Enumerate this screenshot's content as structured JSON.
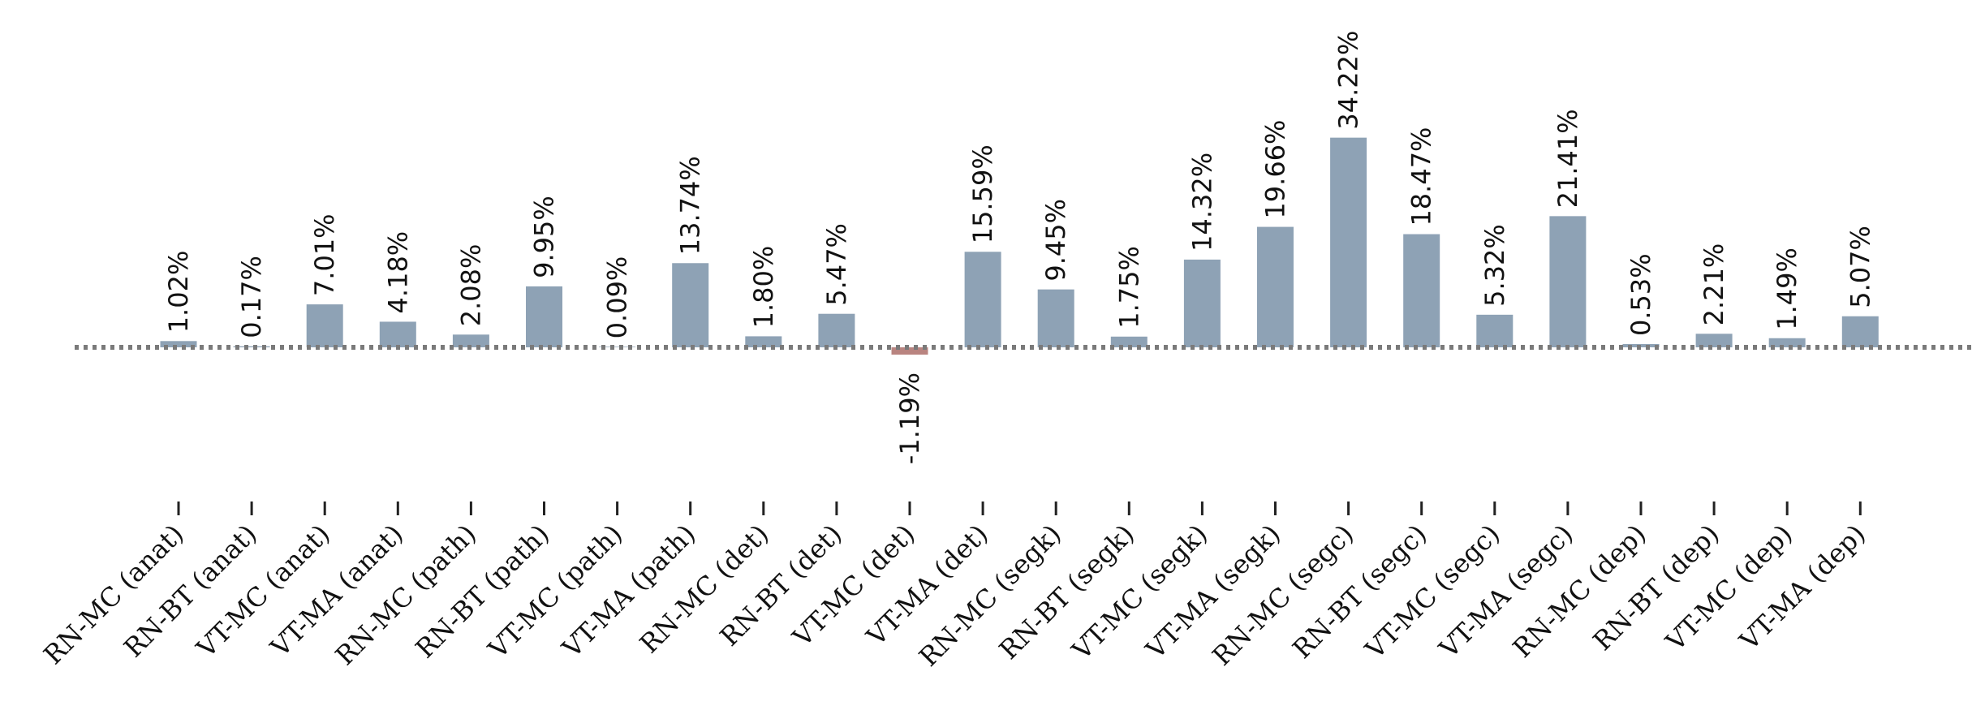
{
  "chart_data": {
    "type": "bar",
    "categories": [
      "RN-MC (anat)",
      "RN-BT (anat)",
      "VT-MC (anat)",
      "VT-MA (anat)",
      "RN-MC (path)",
      "RN-BT (path)",
      "VT-MC (path)",
      "VT-MA (path)",
      "RN-MC (det)",
      "RN-BT (det)",
      "VT-MC (det)",
      "VT-MA (det)",
      "RN-MC (segk)",
      "RN-BT (segk)",
      "VT-MC (segk)",
      "VT-MA (segk)",
      "RN-MC (segc)",
      "RN-BT (segc)",
      "VT-MC (segc)",
      "VT-MA (segc)",
      "RN-MC (dep)",
      "RN-BT (dep)",
      "VT-MC (dep)",
      "VT-MA (dep)"
    ],
    "values": [
      1.02,
      0.17,
      7.01,
      4.18,
      2.08,
      9.95,
      0.09,
      13.74,
      1.8,
      5.47,
      -1.19,
      15.59,
      9.45,
      1.75,
      14.32,
      19.66,
      34.22,
      18.47,
      5.32,
      21.41,
      0.53,
      2.21,
      1.49,
      5.07
    ],
    "value_labels": [
      "1.02%",
      "0.17%",
      "7.01%",
      "4.18%",
      "2.08%",
      "9.95%",
      "0.09%",
      "13.74%",
      "1.80%",
      "5.47%",
      "-1.19%",
      "15.59%",
      "9.45%",
      "1.75%",
      "14.32%",
      "19.66%",
      "34.22%",
      "18.47%",
      "5.32%",
      "21.41%",
      "0.53%",
      "2.21%",
      "1.49%",
      "5.07%"
    ],
    "title": "",
    "xlabel": "",
    "ylabel": "",
    "zero_line": "dotted",
    "grid": false,
    "legend": "none",
    "colors": {
      "positive": "#8ea2b5",
      "negative": "#b98480",
      "zero_line": "#7a7a7a",
      "text": "#111111"
    }
  }
}
